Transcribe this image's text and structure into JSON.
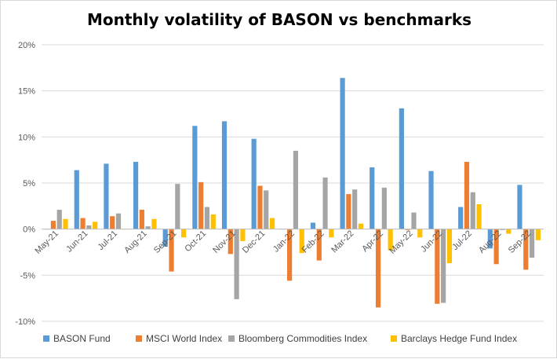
{
  "chart_data": {
    "type": "bar",
    "title": "Monthly volatility of BASON vs benchmarks",
    "xlabel": "",
    "ylabel": "",
    "ylim": [
      -10,
      20
    ],
    "yticks": [
      "-10%",
      "-5%",
      "0%",
      "5%",
      "10%",
      "15%",
      "20%"
    ],
    "grid": true,
    "legend_position": "bottom",
    "categories": [
      "May-21",
      "Jun-21",
      "Jul-21",
      "Aug-21",
      "Sep-21",
      "Oct-21",
      "Nov-21",
      "Dec-21",
      "Jan-22",
      "Feb-22",
      "Mar-22",
      "Apr-22",
      "May-22",
      "Jun-22",
      "Jul-22",
      "Aug-22",
      "Sep-22"
    ],
    "series": [
      {
        "name": "BASON Fund",
        "color": "#5b9bd5",
        "values": [
          0.0,
          6.4,
          7.1,
          7.3,
          -1.9,
          11.2,
          11.7,
          9.8,
          0.0,
          0.7,
          16.4,
          6.7,
          13.1,
          6.3,
          2.4,
          -2.1,
          4.8
        ]
      },
      {
        "name": "MSCI World Index",
        "color": "#ed7d31",
        "values": [
          0.9,
          1.2,
          1.4,
          2.1,
          -4.6,
          5.1,
          -2.7,
          4.7,
          -5.6,
          -3.4,
          3.8,
          -8.5,
          -0.1,
          -8.1,
          7.3,
          -3.8,
          -4.4
        ]
      },
      {
        "name": "Bloomberg Commodities Index",
        "color": "#a5a5a5",
        "values": [
          2.1,
          0.4,
          1.7,
          0.3,
          4.9,
          2.4,
          -7.6,
          4.2,
          8.5,
          5.6,
          4.3,
          4.5,
          1.8,
          -8.0,
          4.0,
          -0.1,
          -3.1
        ]
      },
      {
        "name": "Barclays Hedge Fund Index",
        "color": "#ffc000",
        "values": [
          1.1,
          0.8,
          0.0,
          1.1,
          -0.9,
          1.6,
          -1.3,
          1.2,
          -2.6,
          -0.9,
          0.6,
          -2.3,
          -0.9,
          -3.7,
          2.7,
          -0.5,
          -1.2
        ]
      }
    ]
  }
}
